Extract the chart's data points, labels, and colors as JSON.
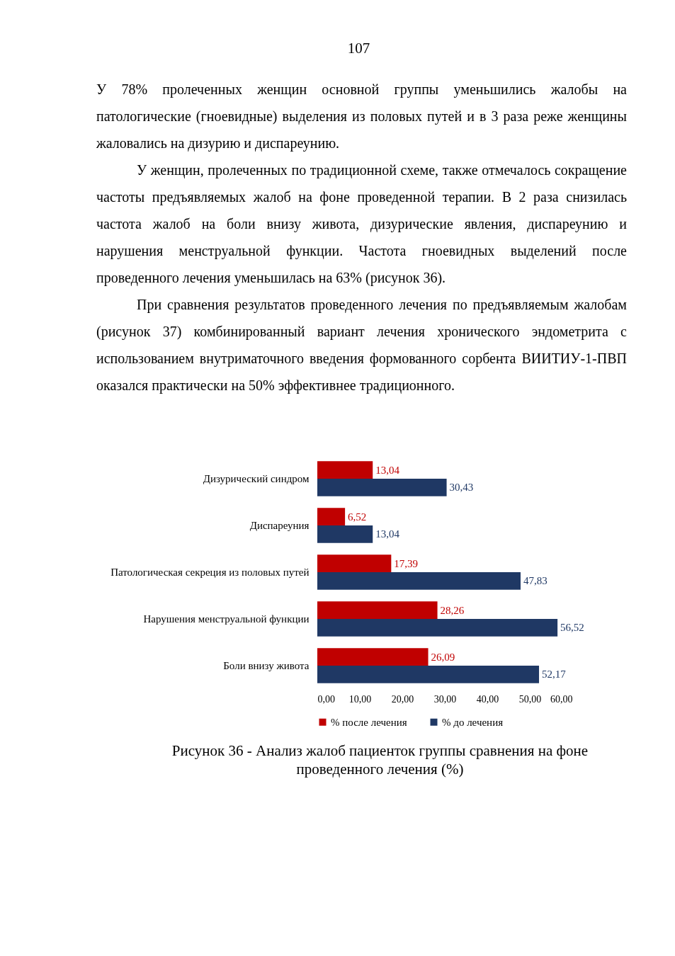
{
  "chart_data": {
    "type": "bar",
    "orientation": "horizontal",
    "title": "Рисунок 36 - Анализ жалоб пациенток группы сравнения на фоне проведенного лечения (%)",
    "annotations": [
      "107",
      "У 78% пролеченных женщин основной группы уменьшились жалобы на патологические (гноевидные) выделения из половых путей и в 3 раза реже женщины жаловались на дизурию и диспареунию.",
      "У женщин, пролеченных по традиционной схеме, также отмечалось сокращение частоты предъявляемых жалоб на фоне проведенной терапии. В 2 раза снизилась частота жалоб на боли внизу живота, дизурические явления, диспареунию и нарушения менструальной функции. Частота гноевидных выделений после проведенного лечения уменьшилась на 63% (рисунок 36).",
      "При сравнения результатов проведенного лечения по предъявляемым жалобам (рисунок 37) комбинированный вариант лечения хронического эндометрита с использованием внутриматочного введения формованного сорбента ВИИТИУ-1-ПВП оказался практически на 50% эффективнее традиционного."
    ],
    "categories": [
      "Дизурический синдром",
      "Диспареуния",
      "Патологическая секреция из половых путей",
      "Нарушения менструальной функции",
      "Боли внизу живота"
    ],
    "series": [
      {
        "name": "% после лечения",
        "color": "#c00000",
        "values": [
          13.04,
          6.52,
          17.39,
          28.26,
          26.09
        ],
        "value_labels": [
          "13,04",
          "6,52",
          "17,39",
          "28,26",
          "26,09"
        ]
      },
      {
        "name": "% до лечения",
        "color": "#1f3864",
        "values": [
          30.43,
          13.04,
          47.83,
          56.52,
          52.17
        ],
        "value_labels": [
          "30,43",
          "13,04",
          "47,83",
          "56,52",
          "52,17"
        ]
      }
    ],
    "xlim": [
      0,
      60
    ],
    "xticks": [
      {
        "value": 0,
        "label": "0,00"
      },
      {
        "value": 10,
        "label": "10,00"
      },
      {
        "value": 20,
        "label": "20,00"
      },
      {
        "value": 30,
        "label": "30,00"
      },
      {
        "value": 40,
        "label": "40,00"
      },
      {
        "value": 50,
        "label": "50,00"
      },
      {
        "value": 60,
        "label": "60,00"
      }
    ],
    "grid": false,
    "legend": "bottom"
  }
}
